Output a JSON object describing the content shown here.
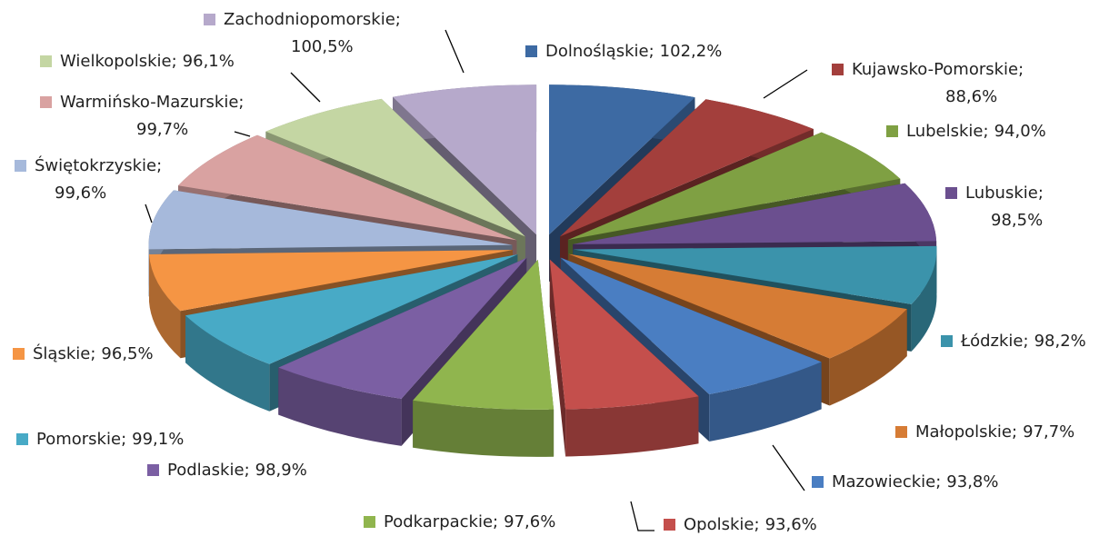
{
  "chart_data": {
    "type": "pie3d",
    "categories": [
      "Dolnośląskie",
      "Kujawsko-Pomorskie",
      "Lubelskie",
      "Lubuskie",
      "Łódzkie",
      "Małopolskie",
      "Mazowieckie",
      "Opolskie",
      "Podkarpackie",
      "Podlaskie",
      "Pomorskie",
      "Śląskie",
      "Świętokrzyskie",
      "Warmińsko-Mazurskie",
      "Wielkopolskie",
      "Zachodniopomorskie"
    ],
    "values": [
      102.2,
      88.6,
      94.0,
      98.5,
      98.2,
      97.7,
      93.8,
      93.6,
      97.6,
      98.9,
      99.1,
      96.5,
      99.6,
      99.7,
      96.1,
      100.5
    ],
    "value_labels": [
      "102,2%",
      "88,6%",
      "94,0%",
      "98,5%",
      "98,2%",
      "97,7%",
      "93,8%",
      "93,6%",
      "97,6%",
      "98,9%",
      "99,1%",
      "96,5%",
      "99,6%",
      "99,7%",
      "96,1%",
      "100,5%"
    ],
    "label_separator": ";",
    "colors": [
      "#3d6aa3",
      "#a33f3c",
      "#7fa043",
      "#6b4f8f",
      "#3b93ab",
      "#d67c35",
      "#4a7ec2",
      "#c44f4c",
      "#90b54e",
      "#7b5fa3",
      "#48aac6",
      "#f59544",
      "#a6b9db",
      "#d9a2a1",
      "#c4d6a3",
      "#b6a9cb"
    ]
  }
}
